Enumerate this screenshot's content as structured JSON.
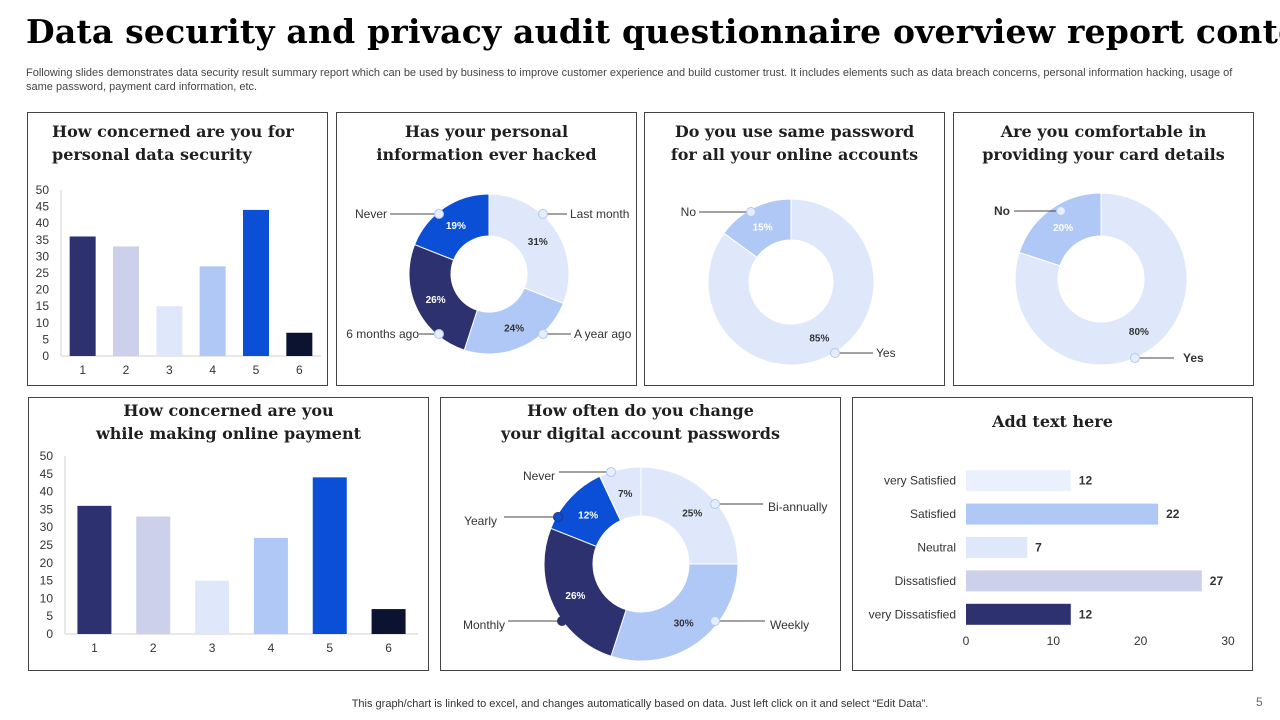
{
  "page": {
    "title": "Data security and privacy audit questionnaire overview report contd.",
    "subtitle": "Following slides demonstrates data security result summary report which can be used by business to improve customer experience and build customer trust. It includes elements such as data breach concerns, personal information hacking, usage of same password, payment card information, etc.",
    "footer": "This graph/chart is linked to excel,  and changes automatically based on data. Just left click on it and select “Edit Data”.",
    "page_number": "5"
  },
  "colors": {
    "navy": "#2e3170",
    "lavender": "#cdd0ea",
    "pale_blue": "#dfe8fb",
    "light_blue": "#b0c8f5",
    "royal_blue": "#0b4fd6",
    "dark_navy": "#0b1330",
    "very_light": "#eaf0fd"
  },
  "chart_data": [
    {
      "id": "c1",
      "type": "bar",
      "title": "How concerned are you for\npersonal data security",
      "categories": [
        "1",
        "2",
        "3",
        "4",
        "5",
        "6"
      ],
      "values": [
        36,
        33,
        15,
        27,
        44,
        7
      ],
      "ylim": [
        0,
        50
      ],
      "yticks": [
        0,
        5,
        10,
        15,
        20,
        25,
        30,
        35,
        40,
        45,
        50
      ],
      "bar_colors": [
        "#2e3170",
        "#cdd0ea",
        "#dfe8fb",
        "#b0c8f5",
        "#0b4fd6",
        "#0b1330"
      ],
      "grid": false
    },
    {
      "id": "c2",
      "type": "pie",
      "title": "Has your personal\ninformation ever hacked",
      "labels": [
        "Last month",
        "A year ago",
        "6 months ago",
        "Never"
      ],
      "values": [
        31,
        24,
        26,
        19
      ],
      "value_labels": [
        "31%",
        "24%",
        "26%",
        "19%"
      ],
      "colors": [
        "#dfe8fb",
        "#b0c8f5",
        "#2e3170",
        "#0b4fd6"
      ]
    },
    {
      "id": "c3",
      "type": "pie",
      "title": "Do you use same password\nfor all your online accounts",
      "labels": [
        "Yes",
        "No"
      ],
      "values": [
        85,
        15
      ],
      "value_labels": [
        "85%",
        "15%"
      ],
      "colors": [
        "#dfe8fb",
        "#b0c8f5"
      ]
    },
    {
      "id": "c4",
      "type": "pie",
      "title": "Are you comfortable in\nproviding your card details",
      "labels": [
        "Yes",
        "No"
      ],
      "values": [
        80,
        20
      ],
      "value_labels": [
        "80%",
        "20%"
      ],
      "colors": [
        "#dfe8fb",
        "#b0c8f5"
      ]
    },
    {
      "id": "c5",
      "type": "bar",
      "title": "How concerned are you\nwhile making online payment",
      "categories": [
        "1",
        "2",
        "3",
        "4",
        "5",
        "6"
      ],
      "values": [
        36,
        33,
        15,
        27,
        44,
        7
      ],
      "ylim": [
        0,
        50
      ],
      "yticks": [
        0,
        5,
        10,
        15,
        20,
        25,
        30,
        35,
        40,
        45,
        50
      ],
      "bar_colors": [
        "#2e3170",
        "#cdd0ea",
        "#dfe8fb",
        "#b0c8f5",
        "#0b4fd6",
        "#0b1330"
      ],
      "grid": false
    },
    {
      "id": "c6",
      "type": "pie",
      "title": "How often do you change\nyour digital account passwords",
      "labels": [
        "Bi-annually",
        "Weekly",
        "Monthly",
        "Yearly",
        "Never"
      ],
      "values": [
        25,
        30,
        26,
        12,
        7
      ],
      "value_labels": [
        "25%",
        "30%",
        "26%",
        "12%",
        "7%"
      ],
      "colors": [
        "#dfe8fb",
        "#b0c8f5",
        "#2e3170",
        "#0b4fd6",
        "#dfe8fb"
      ]
    },
    {
      "id": "c7",
      "type": "bar",
      "orientation": "horizontal",
      "title": "Add text here",
      "categories": [
        "very Satisfied",
        "Satisfied",
        "Neutral",
        "Dissatisfied",
        "very Dissatisfied"
      ],
      "values": [
        12,
        22,
        7,
        27,
        12
      ],
      "xlim": [
        0,
        30
      ],
      "xticks": [
        0,
        10,
        20,
        30
      ],
      "bar_colors": [
        "#eaf0fd",
        "#b0c8f5",
        "#dfe8fb",
        "#cdd0ea",
        "#2e3170"
      ],
      "grid": false
    }
  ]
}
